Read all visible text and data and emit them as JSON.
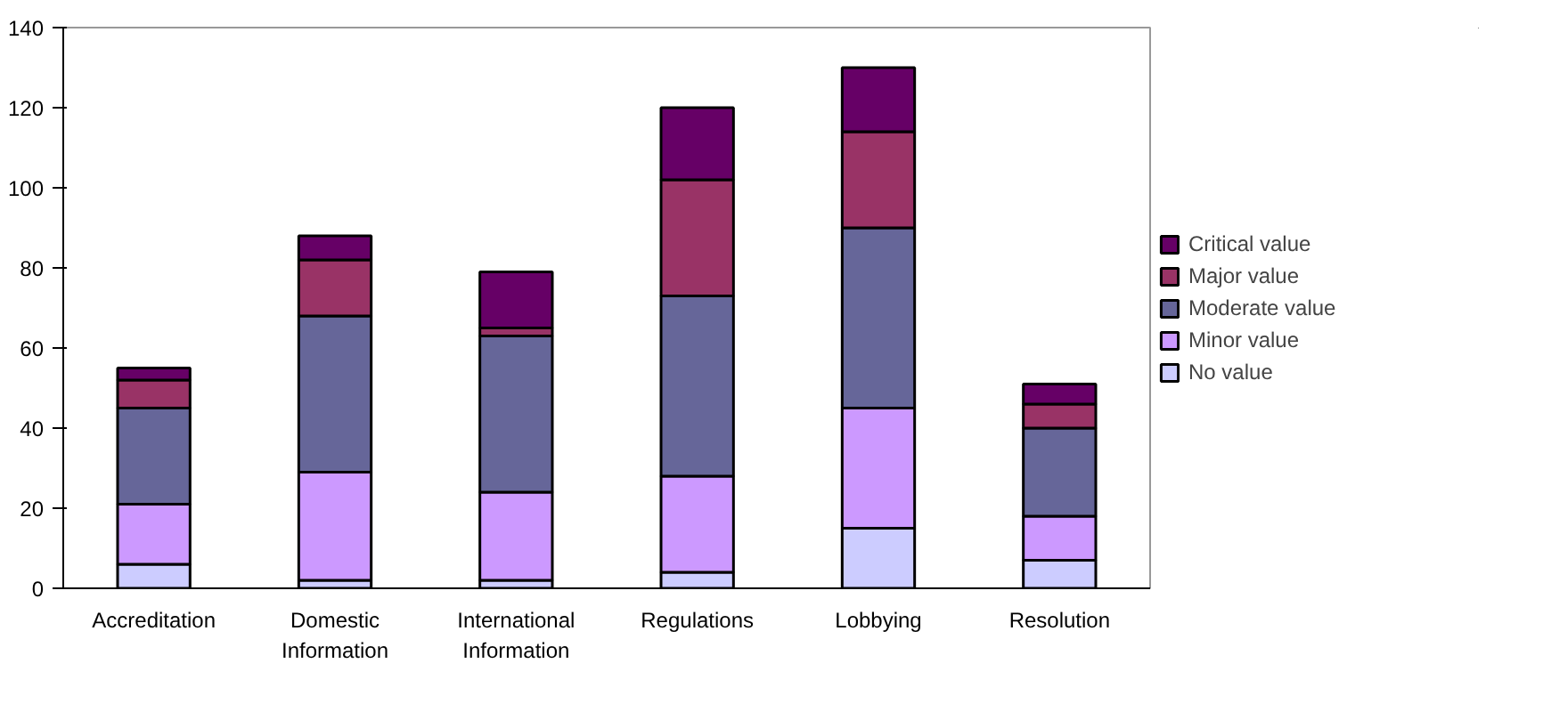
{
  "chart_data": {
    "type": "bar",
    "stacked": true,
    "categories": [
      "Accreditation",
      "Domestic Information",
      "International Information",
      "Regulations",
      "Lobbying",
      "Resolution"
    ],
    "series": [
      {
        "name": "No value",
        "color": "#ccccff",
        "values": [
          6,
          2,
          2,
          4,
          15,
          7
        ]
      },
      {
        "name": "Minor value",
        "color": "#cc99ff",
        "values": [
          15,
          27,
          22,
          24,
          30,
          11
        ]
      },
      {
        "name": "Moderate value",
        "color": "#666699",
        "values": [
          24,
          39,
          39,
          45,
          45,
          22
        ]
      },
      {
        "name": "Major value",
        "color": "#993366",
        "values": [
          7,
          14,
          2,
          29,
          24,
          6
        ]
      },
      {
        "name": "Critical value",
        "color": "#660066",
        "values": [
          3,
          6,
          14,
          18,
          16,
          5
        ]
      }
    ],
    "ylim": [
      0,
      140
    ],
    "yticks": [
      0,
      20,
      40,
      60,
      80,
      100,
      120,
      140
    ],
    "grid": false,
    "legend": "right"
  }
}
